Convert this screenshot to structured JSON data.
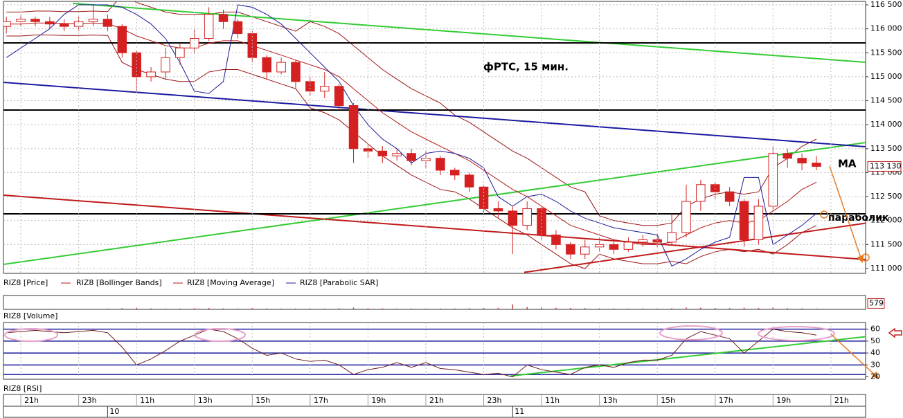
{
  "chart_data": [
    {
      "type": "candlestick",
      "title": "фРТС, 15 мин.",
      "x": [
        -0.5,
        0,
        0.5,
        1,
        1.5,
        2,
        2.5,
        3,
        3.5,
        4,
        4.5,
        5,
        5.5,
        6,
        6.5,
        7,
        7.5,
        8,
        8.5,
        9,
        9.5,
        10,
        10.5,
        11,
        11.5,
        12,
        12.5,
        13,
        13.5,
        14,
        14.5,
        15,
        15.5,
        16,
        16.5,
        17,
        17.5,
        18,
        18.5,
        19,
        19.5,
        20,
        20.5,
        21,
        21.5,
        22,
        22.5,
        23,
        23.5,
        24,
        24.5,
        25,
        25.5,
        26,
        26.5,
        27,
        27.5
      ],
      "series": [
        {
          "name": "RIZ8 [Price]",
          "color": "#d42020",
          "up_color": "#ffffff",
          "open": [
            116050,
            116150,
            116200,
            116150,
            116100,
            116050,
            116150,
            116200,
            116050,
            115500,
            115000,
            115100,
            115400,
            115600,
            115800,
            116300,
            116150,
            115900,
            115400,
            115100,
            115300,
            114900,
            114700,
            114800,
            114400,
            113500,
            113450,
            113350,
            113400,
            113250,
            113300,
            113050,
            112950,
            112700,
            112250,
            112200,
            111900,
            112250,
            111700,
            111500,
            111300,
            111450,
            111500,
            111400,
            111550,
            111600,
            111550,
            111750,
            112400,
            112750,
            112600,
            112400,
            111600,
            112300,
            113400,
            113300,
            113200
          ],
          "high": [
            116250,
            116300,
            116250,
            116250,
            116200,
            116250,
            116500,
            116300,
            116100,
            115550,
            115200,
            115600,
            115700,
            116000,
            116450,
            116400,
            116200,
            115950,
            115450,
            115400,
            115350,
            115000,
            115100,
            114850,
            114450,
            113600,
            113550,
            113500,
            113500,
            113450,
            113350,
            113100,
            113000,
            112750,
            112400,
            112300,
            112400,
            112300,
            111800,
            111550,
            111600,
            111650,
            111600,
            111650,
            111700,
            111700,
            112150,
            112750,
            112850,
            112800,
            112700,
            112450,
            112450,
            113550,
            113500,
            113400,
            113350
          ],
          "low": [
            115900,
            116050,
            116050,
            116000,
            115950,
            115950,
            116050,
            115950,
            115400,
            114700,
            114900,
            114950,
            115250,
            115500,
            115750,
            116000,
            115800,
            115300,
            114950,
            115050,
            114750,
            114600,
            114550,
            114300,
            113200,
            113300,
            113200,
            113250,
            113150,
            113100,
            112950,
            112850,
            112600,
            112150,
            112050,
            111300,
            111800,
            111600,
            111400,
            111200,
            111200,
            111350,
            111300,
            111350,
            111450,
            111450,
            111500,
            111650,
            112200,
            112450,
            112300,
            111450,
            111500,
            112200,
            113100,
            113050,
            113050
          ],
          "close": [
            116150,
            116200,
            116150,
            116100,
            116050,
            116150,
            116200,
            116050,
            115500,
            115000,
            115100,
            115400,
            115600,
            115800,
            116300,
            116150,
            115900,
            115400,
            115100,
            115300,
            114900,
            114700,
            114800,
            114400,
            113500,
            113450,
            113350,
            113400,
            113250,
            113300,
            113050,
            112950,
            112700,
            112250,
            112200,
            111900,
            112250,
            111700,
            111500,
            111300,
            111450,
            111500,
            111400,
            111550,
            111600,
            111550,
            111750,
            112400,
            112750,
            112600,
            112400,
            111600,
            112300,
            113400,
            113300,
            113200,
            113130
          ]
        },
        {
          "name": "RIZ8 [Bollinger Bands]",
          "color": "#9a1414",
          "upper": [
            116350,
            116350,
            116370,
            116370,
            116360,
            116360,
            116370,
            116360,
            116700,
            116550,
            116450,
            116350,
            116300,
            116300,
            116300,
            116350,
            116350,
            116250,
            116150,
            116050,
            115950,
            116150,
            116050,
            115900,
            115650,
            115400,
            115150,
            114950,
            114750,
            114600,
            114450,
            114200,
            114050,
            113850,
            113650,
            113450,
            113300,
            113100,
            112900,
            112700,
            112600,
            112100,
            112000,
            111950,
            111900,
            111900,
            111950,
            112300,
            112450,
            112550,
            112600,
            112550,
            112600,
            113100,
            113300,
            113550,
            113700
          ],
          "lower": [
            115850,
            115850,
            115870,
            115870,
            115860,
            115860,
            115870,
            115860,
            115300,
            115150,
            115050,
            114950,
            114900,
            114900,
            115100,
            115150,
            115150,
            115050,
            114950,
            114850,
            114750,
            114350,
            114250,
            114100,
            113850,
            113600,
            113350,
            113150,
            112950,
            112800,
            112650,
            112600,
            112450,
            112250,
            112050,
            111850,
            111700,
            111500,
            111300,
            111100,
            111000,
            111300,
            111200,
            111150,
            111100,
            111100,
            111150,
            111100,
            111250,
            111350,
            111400,
            111350,
            111400,
            111300,
            111500,
            111750,
            111900
          ]
        },
        {
          "name": "RIZ8 [Moving Average]",
          "color": "#b81818",
          "values": [
            116100,
            116100,
            116120,
            116120,
            116110,
            116110,
            116120,
            116110,
            116000,
            115850,
            115750,
            115650,
            115600,
            115600,
            115700,
            115750,
            115750,
            115650,
            115550,
            115450,
            115350,
            115250,
            115150,
            115000,
            114750,
            114500,
            114250,
            114050,
            113850,
            113700,
            113550,
            113400,
            113250,
            113050,
            112850,
            112650,
            112500,
            112300,
            112100,
            111900,
            111800,
            111700,
            111600,
            111550,
            111500,
            111500,
            111550,
            111700,
            111850,
            111950,
            112000,
            111950,
            112000,
            112200,
            112400,
            112650,
            112800
          ]
        },
        {
          "name": "RIZ8 [Parabolic SAR]",
          "color": "#1a1a9a",
          "values": [
            115400,
            115600,
            115800,
            116000,
            116300,
            116500,
            116500,
            116500,
            116450,
            116300,
            116100,
            115800,
            115300,
            114700,
            114650,
            114900,
            116500,
            116450,
            116300,
            116100,
            115800,
            115500,
            115200,
            114900,
            114400,
            114000,
            113700,
            113500,
            113200,
            113400,
            113450,
            113400,
            113300,
            113100,
            112500,
            112300,
            112500,
            112550,
            112400,
            112200,
            112050,
            111950,
            111850,
            111800,
            111750,
            111700,
            111050,
            111200,
            111400,
            111550,
            111650,
            112900,
            112900,
            111500,
            111700,
            111900,
            112150
          ]
        }
      ],
      "annotations": [
        "MA",
        "параболик"
      ],
      "last_value": {
        "value": 113130,
        "label": "113 130"
      },
      "trend_lines": [
        {
          "color": "#33cc33",
          "x": [
            1.8,
            29.2
          ],
          "y": [
            116530,
            115302
          ]
        },
        {
          "color": "#33cc33",
          "x": [
            -0.6,
            29.2
          ],
          "y": [
            111087,
            113628
          ]
        },
        {
          "color": "#1a1aa0",
          "x": [
            -0.6,
            29.2
          ],
          "y": [
            114883,
            113541
          ]
        },
        {
          "color": "#c01a1a",
          "x": [
            -0.6,
            29.2
          ],
          "y": [
            112530,
            111188
          ]
        },
        {
          "color": "#c01a1a",
          "x": [
            17.4,
            29.2
          ],
          "y": [
            110920,
            111945
          ]
        },
        {
          "color": "#000000",
          "x": [
            -0.6,
            29.2
          ],
          "y": [
            115706,
            115706
          ]
        },
        {
          "color": "#000000",
          "x": [
            -0.6,
            29.2
          ],
          "y": [
            114306,
            114306
          ]
        },
        {
          "color": "#000000",
          "x": [
            -0.6,
            29.2
          ],
          "y": [
            112140,
            112140
          ]
        }
      ],
      "xlim": [
        -0.6,
        29.2
      ],
      "xticks": [
        {
          "value": 0,
          "label": "21h"
        },
        {
          "value": 2,
          "label": "23h"
        },
        {
          "value": 4,
          "label": "11h"
        },
        {
          "value": 6,
          "label": "13h"
        },
        {
          "value": 8,
          "label": "15h"
        },
        {
          "value": 10,
          "label": "17h"
        },
        {
          "value": 12,
          "label": "19h"
        },
        {
          "value": 14,
          "label": "21h"
        },
        {
          "value": 16,
          "label": "23h"
        },
        {
          "value": 18,
          "label": "11h"
        },
        {
          "value": 20,
          "label": "13h"
        },
        {
          "value": 22,
          "label": "15h"
        },
        {
          "value": 24,
          "label": "17h"
        },
        {
          "value": 26,
          "label": "19h"
        },
        {
          "value": 28,
          "label": "21h"
        }
      ],
      "date_ticks": [
        {
          "value": 3,
          "label": "10"
        },
        {
          "value": 17,
          "label": "11"
        }
      ],
      "ylim": [
        110899,
        116572
      ],
      "yticks": [
        {
          "value": 111000,
          "label": "111 000"
        },
        {
          "value": 111500,
          "label": "111 500"
        },
        {
          "value": 112000,
          "label": "112 000"
        },
        {
          "value": 112500,
          "label": "112 500"
        },
        {
          "value": 113000,
          "label": "113 000"
        },
        {
          "value": 113500,
          "label": "113 500"
        },
        {
          "value": 114000,
          "label": "114 000"
        },
        {
          "value": 114500,
          "label": "114 500"
        },
        {
          "value": 115000,
          "label": "115 000"
        },
        {
          "value": 115500,
          "label": "115 500"
        },
        {
          "value": 116000,
          "label": "116 000"
        },
        {
          "value": 116500,
          "label": "116 500"
        }
      ],
      "grid": true
    },
    {
      "type": "bar",
      "series": [
        {
          "name": "RIZ8 [Volume]",
          "color": "#c04040",
          "values": [
            30,
            25,
            20,
            30,
            20,
            25,
            30,
            40,
            60,
            80,
            50,
            40,
            45,
            60,
            70,
            50,
            40,
            60,
            50,
            40,
            45,
            50,
            40,
            60,
            90,
            60,
            50,
            40,
            45,
            40,
            50,
            45,
            60,
            70,
            80,
            250,
            120,
            90,
            80,
            70,
            60,
            50,
            45,
            40,
            50,
            40,
            60,
            90,
            80,
            70,
            60,
            80,
            70,
            90,
            60,
            50,
            40
          ]
        }
      ],
      "ylim": [
        0,
        700
      ],
      "yticks": [
        579
      ]
    },
    {
      "type": "line",
      "series": [
        {
          "name": "RIZ8 [RSI]",
          "color": "#6b1a1a",
          "values": [
            57,
            58,
            59,
            58,
            57,
            58,
            59,
            57,
            45,
            30,
            35,
            42,
            50,
            55,
            60,
            58,
            52,
            44,
            38,
            40,
            35,
            33,
            34,
            30,
            22,
            26,
            28,
            32,
            28,
            32,
            27,
            26,
            24,
            22,
            23,
            20,
            30,
            26,
            24,
            22,
            28,
            30,
            28,
            32,
            34,
            34,
            38,
            52,
            58,
            55,
            52,
            40,
            50,
            60,
            58,
            57,
            55
          ]
        }
      ],
      "ylim": [
        18,
        65.6
      ],
      "yticks": [
        20,
        30,
        40,
        50,
        60
      ],
      "levels": [
        60,
        50,
        40,
        30,
        22
      ],
      "trend_lines": [
        {
          "color": "#33cc33",
          "x": [
            16.9,
            29.2
          ],
          "y": [
            20.6,
            53.7
          ]
        }
      ]
    }
  ]
}
